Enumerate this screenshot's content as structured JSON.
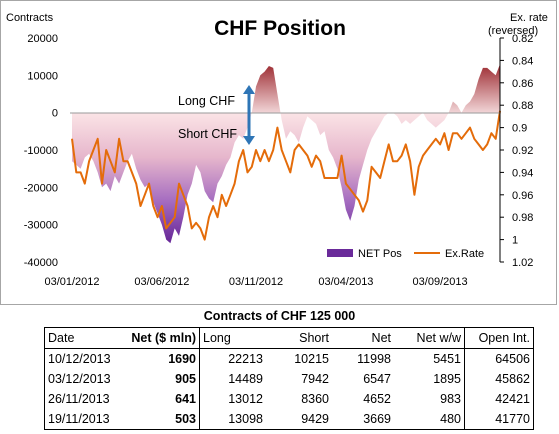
{
  "chart_data": {
    "type": "area",
    "title": "CHF Position",
    "y_left_label": "Contracts",
    "y_right_label_line1": "Ex. rate",
    "y_right_label_line2": "(reversed)",
    "y_left_range": [
      -40000,
      20000
    ],
    "y_left_ticks": [
      20000,
      10000,
      0,
      -10000,
      -20000,
      -30000,
      -40000
    ],
    "y_left_tick_labels": [
      "20000",
      "10000",
      "0",
      "-10000",
      "-20000",
      "-30000",
      "-40000"
    ],
    "y_right_range_reversed": [
      0.82,
      1.02
    ],
    "y_right_ticks": [
      0.82,
      0.84,
      0.86,
      0.88,
      0.9,
      0.92,
      0.94,
      0.96,
      0.98,
      1,
      1.02
    ],
    "y_right_tick_labels": [
      "0.82",
      "0.84",
      "0.86",
      "0.88",
      "0.9",
      "0.92",
      "0.94",
      "0.96",
      "0.98",
      "1",
      "1.02"
    ],
    "x_tick_labels": [
      "03/01/2012",
      "03/06/2012",
      "03/11/2012",
      "03/04/2013",
      "03/09/2013"
    ],
    "x_tick_positions": [
      0,
      21,
      43,
      64,
      86
    ],
    "x_count": 101,
    "grid": false,
    "legend_position": "bottom-right",
    "annotation_long": "Long CHF",
    "annotation_short": "Short CHF",
    "colors": {
      "net_pos_positive": "#a03238",
      "net_pos_negative": "#7030a0",
      "ex_rate_line": "#e46c0a",
      "annotation_arrow": "#2e75b6"
    },
    "series": [
      {
        "name": "NET Pos",
        "axis": "left",
        "values": [
          -13000,
          -14000,
          -15000,
          -12000,
          -11000,
          -13000,
          -16000,
          -20000,
          -19000,
          -21000,
          -17000,
          -19000,
          -16000,
          -13000,
          -11000,
          -15000,
          -18000,
          -20000,
          -19000,
          -24000,
          -27000,
          -30000,
          -34000,
          -35000,
          -31000,
          -33000,
          -28000,
          -22000,
          -19000,
          -14000,
          -16000,
          -21000,
          -23000,
          -24000,
          -19000,
          -17000,
          -14000,
          -12000,
          -8000,
          -6000,
          -7000,
          -4000,
          0,
          7000,
          10000,
          11000,
          12500,
          12000,
          5000,
          -2000,
          -7000,
          -5000,
          -6000,
          -8000,
          -4000,
          -1000,
          -2000,
          -3000,
          -6000,
          -5000,
          -10000,
          -12000,
          -15000,
          -20000,
          -26000,
          -29000,
          -25000,
          -18000,
          -14000,
          -10000,
          -7000,
          -5000,
          -3000,
          -1000,
          0,
          0,
          -1000,
          -3000,
          -2000,
          -3000,
          -2000,
          -1000,
          0,
          -2000,
          -3000,
          -4000,
          -3000,
          -2000,
          0,
          3000,
          2000,
          0,
          2000,
          3000,
          5000,
          9000,
          12000,
          12000,
          11000,
          10000,
          13000
        ]
      },
      {
        "name": "Ex.Rate",
        "axis": "right",
        "values": [
          0.91,
          0.94,
          0.94,
          0.95,
          0.93,
          0.92,
          0.91,
          0.95,
          0.92,
          0.93,
          0.94,
          0.91,
          0.93,
          0.93,
          0.94,
          0.95,
          0.97,
          0.96,
          0.95,
          0.97,
          0.98,
          0.97,
          0.99,
          0.985,
          0.98,
          0.95,
          0.96,
          0.97,
          0.99,
          0.985,
          0.99,
          1.0,
          0.98,
          0.97,
          0.98,
          0.96,
          0.97,
          0.96,
          0.95,
          0.93,
          0.92,
          0.94,
          0.935,
          0.92,
          0.93,
          0.92,
          0.93,
          0.92,
          0.9,
          0.92,
          0.93,
          0.94,
          0.92,
          0.915,
          0.92,
          0.925,
          0.935,
          0.925,
          0.93,
          0.945,
          0.945,
          0.945,
          0.945,
          0.925,
          0.95,
          0.955,
          0.96,
          0.965,
          0.975,
          0.965,
          0.935,
          0.94,
          0.945,
          0.93,
          0.915,
          0.93,
          0.93,
          0.925,
          0.915,
          0.93,
          0.96,
          0.935,
          0.925,
          0.92,
          0.915,
          0.91,
          0.915,
          0.905,
          0.92,
          0.905,
          0.905,
          0.91,
          0.905,
          0.9,
          0.91,
          0.915,
          0.92,
          0.915,
          0.905,
          0.91,
          0.885
        ]
      }
    ]
  },
  "table": {
    "title": "Contracts of CHF 125 000",
    "headers": [
      "Date",
      "Net ($ mln)",
      "Long",
      "Short",
      "Net",
      "Net w/w",
      "Open Int."
    ],
    "rows": [
      [
        "10/12/2013",
        "1690",
        "22213",
        "10215",
        "11998",
        "5451",
        "64506"
      ],
      [
        "03/12/2013",
        "905",
        "14489",
        "7942",
        "6547",
        "1895",
        "45862"
      ],
      [
        "26/11/2013",
        "641",
        "13012",
        "8360",
        "4652",
        "983",
        "42421"
      ],
      [
        "19/11/2013",
        "503",
        "13098",
        "9429",
        "3669",
        "480",
        "41770"
      ]
    ]
  }
}
